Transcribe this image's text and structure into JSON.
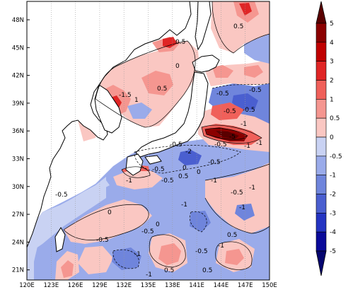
{
  "map": {
    "lat_ticks": [
      "48N",
      "45N",
      "42N",
      "39N",
      "36N",
      "33N",
      "30N",
      "27N",
      "24N",
      "21N"
    ],
    "lon_ticks": [
      "120E",
      "123E",
      "126E",
      "129E",
      "132E",
      "135E",
      "138E",
      "141E",
      "144E",
      "147E",
      "150E"
    ],
    "contour_labels": [
      "0.5",
      "0.5",
      "0",
      "0.5",
      "-0.5",
      "-1.5",
      "-0.5",
      "1",
      "-0.5",
      "-0.5",
      "-1",
      "-5",
      "-0.5",
      "-1",
      "-1",
      "-0.5",
      "-2",
      "-0.5",
      "0",
      "0.5",
      "-0.5",
      "-0.5",
      "-1",
      "-1",
      "0",
      "-1",
      "-0.5",
      "-0.5",
      "0",
      "-1",
      "-0.5",
      "-1",
      "0.5",
      "-1",
      "-0.5",
      "-1",
      "-0.5",
      "0",
      "0.5",
      "-1",
      "0.5"
    ]
  },
  "colorbar": {
    "labels": [
      "5",
      "4",
      "3",
      "2",
      "1",
      "0.5",
      "0",
      "-0.5",
      "-1",
      "-2",
      "-3",
      "-4",
      "-5"
    ],
    "colors": [
      "#8b0000",
      "#c00000",
      "#e02525",
      "#f0605a",
      "#f59690",
      "#fac7c2",
      "#ffffff",
      "#c9d2f3",
      "#9aabea",
      "#6f85dc",
      "#4a5fd0",
      "#2434c2",
      "#0a0a9a"
    ],
    "top_color": "#5a0000",
    "bottom_color": "#050570"
  }
}
